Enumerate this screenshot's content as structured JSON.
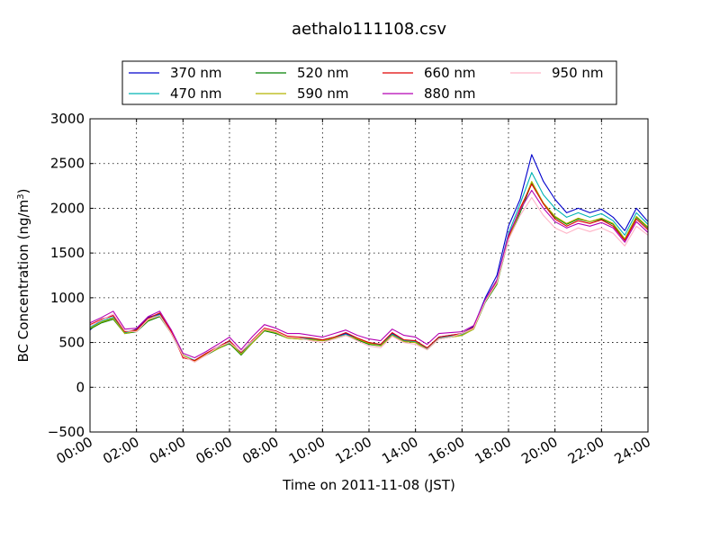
{
  "chart_data": {
    "type": "line",
    "title": "aethalo111108.csv",
    "xlabel": "Time on 2011-11-08 (JST)",
    "ylabel_main": "BC Concentration (ng/m",
    "ylabel_sup": "3",
    "ylabel_end": ")",
    "xlim": [
      0,
      24
    ],
    "ylim": [
      -500,
      3000
    ],
    "x_ticks": [
      0,
      2,
      4,
      6,
      8,
      10,
      12,
      14,
      16,
      18,
      20,
      22,
      24
    ],
    "x_tick_labels": [
      "00:00",
      "02:00",
      "04:00",
      "06:00",
      "08:00",
      "10:00",
      "12:00",
      "14:00",
      "16:00",
      "18:00",
      "20:00",
      "22:00",
      "24:00"
    ],
    "y_ticks": [
      -500,
      0,
      500,
      1000,
      1500,
      2000,
      2500,
      3000
    ],
    "y_tick_labels": [
      "−500",
      "0",
      "500",
      "1000",
      "1500",
      "2000",
      "2500",
      "3000"
    ],
    "grid": true,
    "legend_position": "top",
    "x": [
      0.0,
      0.5,
      1.0,
      1.5,
      2.0,
      2.5,
      3.0,
      3.5,
      4.0,
      4.5,
      5.0,
      5.5,
      6.0,
      6.5,
      7.0,
      7.5,
      8.0,
      8.5,
      9.0,
      9.5,
      10.0,
      10.5,
      11.0,
      11.5,
      12.0,
      12.5,
      13.0,
      13.5,
      14.0,
      14.5,
      15.0,
      15.5,
      16.0,
      16.5,
      17.0,
      17.5,
      18.0,
      18.5,
      19.0,
      19.5,
      20.0,
      20.5,
      21.0,
      21.5,
      22.0,
      22.5,
      23.0,
      23.5,
      24.0
    ],
    "series": [
      {
        "name": "370 nm",
        "color": "#0000cc",
        "values": [
          640,
          760,
          800,
          600,
          650,
          780,
          820,
          600,
          350,
          300,
          370,
          450,
          520,
          380,
          520,
          650,
          620,
          560,
          560,
          540,
          530,
          560,
          600,
          540,
          500,
          470,
          600,
          520,
          520,
          430,
          560,
          580,
          600,
          680,
          1000,
          1250,
          1800,
          2100,
          2600,
          2300,
          2100,
          1950,
          2000,
          1950,
          1990,
          1900,
          1750,
          2000,
          1850
        ]
      },
      {
        "name": "470 nm",
        "color": "#00b3b3",
        "values": [
          670,
          740,
          780,
          610,
          640,
          760,
          810,
          610,
          360,
          300,
          380,
          440,
          510,
          380,
          510,
          640,
          610,
          560,
          550,
          540,
          520,
          550,
          590,
          540,
          490,
          470,
          590,
          520,
          510,
          430,
          550,
          570,
          590,
          670,
          980,
          1200,
          1720,
          2050,
          2400,
          2150,
          2000,
          1900,
          1950,
          1900,
          1940,
          1860,
          1700,
          1950,
          1820
        ]
      },
      {
        "name": "520 nm",
        "color": "#008000",
        "values": [
          650,
          720,
          760,
          600,
          620,
          740,
          790,
          600,
          350,
          290,
          360,
          430,
          490,
          360,
          500,
          630,
          600,
          550,
          540,
          530,
          520,
          540,
          580,
          530,
          480,
          460,
          580,
          510,
          500,
          420,
          540,
          560,
          580,
          650,
          950,
          1150,
          1650,
          1950,
          2280,
          2050,
          1900,
          1820,
          1880,
          1850,
          1880,
          1820,
          1650,
          1900,
          1780
        ]
      },
      {
        "name": "590 nm",
        "color": "#b3b300",
        "values": [
          660,
          730,
          770,
          600,
          630,
          750,
          800,
          600,
          360,
          290,
          370,
          430,
          500,
          370,
          500,
          640,
          610,
          550,
          540,
          530,
          520,
          550,
          580,
          540,
          490,
          460,
          580,
          510,
          500,
          420,
          540,
          560,
          580,
          650,
          960,
          1160,
          1660,
          1970,
          2300,
          2060,
          1910,
          1830,
          1890,
          1850,
          1890,
          1830,
          1660,
          1910,
          1790
        ]
      },
      {
        "name": "660 nm",
        "color": "#e00000",
        "values": [
          700,
          760,
          800,
          620,
          640,
          770,
          830,
          620,
          330,
          300,
          380,
          450,
          520,
          390,
          530,
          660,
          630,
          570,
          560,
          550,
          530,
          560,
          610,
          550,
          500,
          480,
          610,
          530,
          520,
          440,
          560,
          580,
          600,
          670,
          970,
          1180,
          1680,
          2000,
          2270,
          2050,
          1880,
          1800,
          1860,
          1830,
          1870,
          1800,
          1640,
          1880,
          1760
        ]
      },
      {
        "name": "880 nm",
        "color": "#b300b3",
        "values": [
          720,
          780,
          850,
          650,
          660,
          790,
          850,
          640,
          380,
          330,
          400,
          480,
          560,
          420,
          570,
          700,
          660,
          600,
          600,
          580,
          560,
          600,
          640,
          580,
          540,
          520,
          650,
          580,
          560,
          480,
          600,
          610,
          620,
          690,
          980,
          1200,
          1700,
          1980,
          2200,
          2000,
          1850,
          1780,
          1830,
          1800,
          1840,
          1780,
          1620,
          1850,
          1730
        ]
      },
      {
        "name": "950 nm",
        "color": "#ffb3c6",
        "values": [
          690,
          750,
          820,
          630,
          620,
          760,
          800,
          600,
          350,
          280,
          360,
          450,
          500,
          400,
          520,
          650,
          620,
          560,
          550,
          520,
          500,
          540,
          580,
          520,
          460,
          440,
          570,
          500,
          480,
          420,
          540,
          560,
          600,
          660,
          960,
          1170,
          1650,
          1920,
          2120,
          1920,
          1780,
          1720,
          1780,
          1740,
          1780,
          1720,
          1580,
          1800,
          1700
        ]
      }
    ]
  }
}
